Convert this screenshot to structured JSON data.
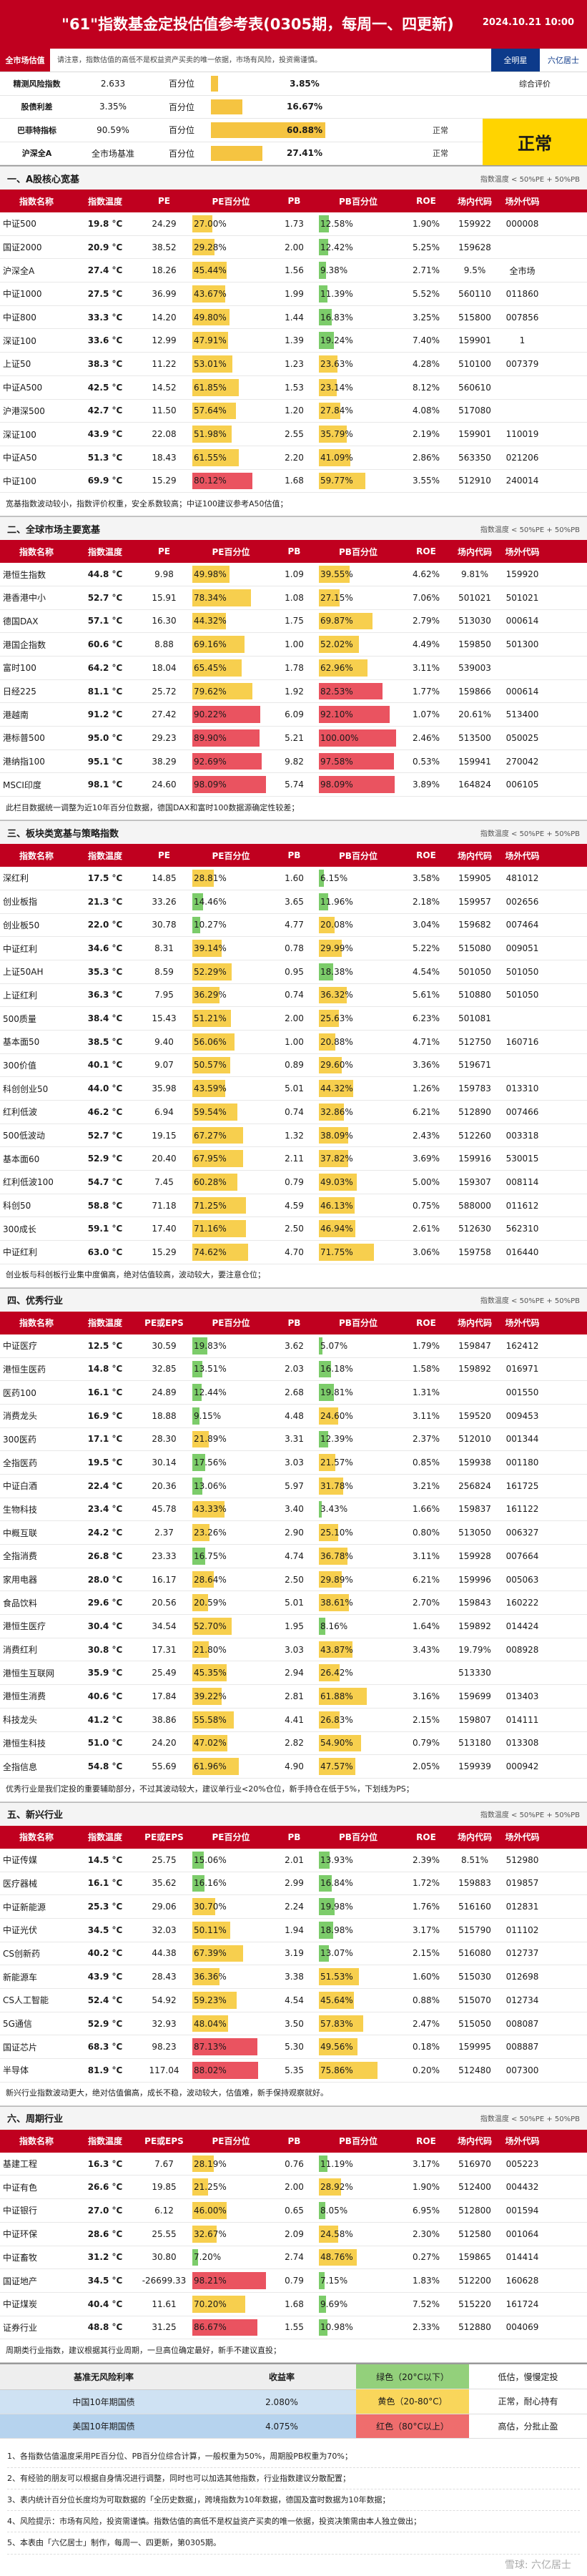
{
  "header": {
    "title": "\"61\"指数基金定投估值参考表(0305期，每周一、四更新)",
    "date": "2024.10.21 10:00"
  },
  "subbar": {
    "tag": "全市场估值",
    "desc": "请注意，指数估值的高低不是权益资产买卖的唯一依据，市场有风险，投资需谨慎。",
    "nav": "全明星",
    "author": "六亿居士"
  },
  "summary": {
    "rows": [
      {
        "name": "精测风险指数",
        "val": "2.633",
        "lbl": "百分位",
        "pct": "3.85%",
        "p": 3.85,
        "side": "综合评价"
      },
      {
        "name": "股债利差",
        "val": "3.35%",
        "lbl": "百分位",
        "pct": "16.67%",
        "p": 16.67,
        "side": ""
      },
      {
        "name": "巴菲特指标",
        "val": "90.59%",
        "lbl": "百分位",
        "pct": "60.88%",
        "p": 60.88,
        "right": "正常"
      },
      {
        "name": "沪深全A",
        "val": "全市场基准",
        "lbl": "百分位",
        "pct": "27.41%",
        "p": 27.41,
        "right": "正常"
      }
    ],
    "verdict": "正常"
  },
  "headers_main": [
    "指数名称",
    "指数温度",
    "PE",
    "PE百分位",
    "PB",
    "PB百分位",
    "ROE",
    "场内代码",
    "场外代码"
  ],
  "headers_ind": [
    "指数名称",
    "指数温度",
    "PE或EPS",
    "PE百分位",
    "PB",
    "PB百分位",
    "ROE",
    "场内代码",
    "场外代码"
  ],
  "sections": [
    {
      "title": "一、A股核心宽基",
      "legend": "指数温度 < 50%PE + 50%PB",
      "headers": "main",
      "note": "宽基指数波动较小，指数评价权重，安全系数较高；中证100建议参考A50估值；",
      "rows": [
        [
          "中证500",
          "19.8 °C",
          "24.29",
          "27.00%",
          "1.73",
          "12.58%",
          "1.90%",
          "159922",
          "000008"
        ],
        [
          "国证2000",
          "20.9 °C",
          "38.52",
          "29.28%",
          "2.00",
          "12.42%",
          "5.25%",
          "159628",
          ""
        ],
        [
          "沪深全A",
          "27.4 °C",
          "18.26",
          "45.44%",
          "1.56",
          "9.38%",
          "2.71%",
          "9.5%",
          "全市场"
        ],
        [
          "中证1000",
          "27.5 °C",
          "36.99",
          "43.67%",
          "1.99",
          "11.39%",
          "5.52%",
          "560110",
          "011860"
        ],
        [
          "中证800",
          "33.3 °C",
          "14.20",
          "49.80%",
          "1.44",
          "16.83%",
          "3.25%",
          "515800",
          "007856"
        ],
        [
          "深证100",
          "33.6 °C",
          "12.99",
          "47.91%",
          "1.39",
          "19.24%",
          "7.40%",
          "159901",
          "1"
        ],
        [
          "上证50",
          "38.3 °C",
          "11.22",
          "53.01%",
          "1.23",
          "23.63%",
          "4.28%",
          "510100",
          "007379"
        ],
        [
          "中证A500",
          "42.5 °C",
          "14.52",
          "61.85%",
          "1.53",
          "23.14%",
          "8.12%",
          "560610",
          ""
        ],
        [
          "沪港深500",
          "42.7 °C",
          "11.50",
          "57.64%",
          "1.20",
          "27.84%",
          "4.08%",
          "517080",
          ""
        ],
        [
          "深证100",
          "43.9 °C",
          "22.08",
          "51.98%",
          "2.55",
          "35.79%",
          "2.19%",
          "159901",
          "110019"
        ],
        [
          "中证A50",
          "51.3 °C",
          "18.43",
          "61.55%",
          "2.20",
          "41.09%",
          "2.86%",
          "563350",
          "021206"
        ],
        [
          "中证100",
          "69.9 °C",
          "15.29",
          "80.12%",
          "1.68",
          "59.77%",
          "3.55%",
          "512910",
          "240014"
        ]
      ]
    },
    {
      "title": "二、全球市场主要宽基",
      "legend": "指数温度 < 50%PE + 50%PB",
      "headers": "main",
      "note": "此栏目数据统一调整为近10年百分位数据，德国DAX和富时100数据源确定性较差；",
      "rows": [
        [
          "港恒生指数",
          "44.8 °C",
          "9.98",
          "49.98%",
          "1.09",
          "39.55%",
          "4.62%",
          "9.81%",
          "159920"
        ],
        [
          "港香港中小",
          "52.7 °C",
          "15.91",
          "78.34%",
          "1.08",
          "27.15%",
          "7.06%",
          "501021",
          "501021"
        ],
        [
          "德国DAX",
          "57.1 °C",
          "16.30",
          "44.32%",
          "1.75",
          "69.87%",
          "2.79%",
          "513030",
          "000614"
        ],
        [
          "港国企指数",
          "60.6 °C",
          "8.88",
          "69.16%",
          "1.00",
          "52.02%",
          "4.49%",
          "159850",
          "501300"
        ],
        [
          "富时100",
          "64.2 °C",
          "18.04",
          "65.45%",
          "1.78",
          "62.96%",
          "3.11%",
          "539003",
          ""
        ],
        [
          "日经225",
          "81.1 °C",
          "25.72",
          "79.62%",
          "1.92",
          "82.53%",
          "1.77%",
          "159866",
          "000614"
        ],
        [
          "港越南",
          "91.2 °C",
          "27.42",
          "90.22%",
          "6.09",
          "92.10%",
          "1.07%",
          "20.61%",
          "513400"
        ],
        [
          "港标普500",
          "95.0 °C",
          "29.23",
          "89.90%",
          "5.21",
          "100.00%",
          "2.46%",
          "513500",
          "050025"
        ],
        [
          "港纳指100",
          "95.1 °C",
          "38.29",
          "92.69%",
          "9.82",
          "97.58%",
          "0.53%",
          "159941",
          "270042"
        ],
        [
          "MSCI印度",
          "98.1 °C",
          "24.60",
          "98.09%",
          "5.74",
          "98.09%",
          "3.89%",
          "164824",
          "006105"
        ]
      ]
    },
    {
      "title": "三、板块类宽基与策略指数",
      "legend": "指数温度 < 50%PE + 50%PB",
      "headers": "main",
      "note": "创业板与科创板行业集中度偏高，绝对估值较高，波动较大，要注意仓位；",
      "rows": [
        [
          "深红利",
          "17.5 °C",
          "14.85",
          "28.81%",
          "1.60",
          "6.15%",
          "3.58%",
          "159905",
          "481012"
        ],
        [
          "创业板指",
          "21.3 °C",
          "33.26",
          "14.46%",
          "3.65",
          "11.96%",
          "2.18%",
          "159957",
          "002656"
        ],
        [
          "创业板50",
          "22.0 °C",
          "30.78",
          "10.27%",
          "4.77",
          "20.08%",
          "3.04%",
          "159682",
          "007464"
        ],
        [
          "中证红利",
          "34.6 °C",
          "8.31",
          "39.14%",
          "0.78",
          "29.99%",
          "5.22%",
          "515080",
          "009051"
        ],
        [
          "上证50AH",
          "35.3 °C",
          "8.59",
          "52.29%",
          "0.95",
          "18.38%",
          "4.54%",
          "501050",
          "501050"
        ],
        [
          "上证红利",
          "36.3 °C",
          "7.95",
          "36.29%",
          "0.74",
          "36.32%",
          "5.61%",
          "510880",
          "501050"
        ],
        [
          "500质量",
          "38.4 °C",
          "15.43",
          "51.21%",
          "2.00",
          "25.63%",
          "6.23%",
          "501081",
          ""
        ],
        [
          "基本面50",
          "38.5 °C",
          "9.40",
          "56.06%",
          "1.00",
          "20.88%",
          "4.71%",
          "512750",
          "160716"
        ],
        [
          "300价值",
          "40.1 °C",
          "9.07",
          "50.57%",
          "0.89",
          "29.60%",
          "3.36%",
          "519671",
          ""
        ],
        [
          "科创创业50",
          "44.0 °C",
          "35.98",
          "43.59%",
          "5.01",
          "44.32%",
          "1.26%",
          "159783",
          "013310"
        ],
        [
          "红利低波",
          "46.2 °C",
          "6.94",
          "59.54%",
          "0.74",
          "32.86%",
          "6.21%",
          "512890",
          "007466"
        ],
        [
          "500低波动",
          "52.7 °C",
          "19.15",
          "67.27%",
          "1.32",
          "38.09%",
          "2.43%",
          "512260",
          "003318"
        ],
        [
          "基本面60",
          "52.9 °C",
          "20.40",
          "67.95%",
          "2.11",
          "37.82%",
          "3.69%",
          "159916",
          "530015"
        ],
        [
          "红利低波100",
          "54.7 °C",
          "7.45",
          "60.28%",
          "0.79",
          "49.03%",
          "5.00%",
          "159307",
          "008114"
        ],
        [
          "科创50",
          "58.8 °C",
          "71.18",
          "71.25%",
          "4.59",
          "46.13%",
          "0.75%",
          "588000",
          "011612"
        ],
        [
          "300成长",
          "59.1 °C",
          "17.40",
          "71.16%",
          "2.50",
          "46.94%",
          "2.61%",
          "512630",
          "562310"
        ],
        [
          "中证红利",
          "63.0 °C",
          "15.29",
          "74.62%",
          "4.70",
          "71.75%",
          "3.06%",
          "159758",
          "016440"
        ]
      ]
    },
    {
      "title": "四、优秀行业",
      "legend": "指数温度 < 50%PE + 50%PB",
      "headers": "ind",
      "note": "优秀行业是我们定投的重要辅助部分，不过其波动较大，建议单行业<20%仓位，新手持仓在低于5%，下划线为PS；",
      "rows": [
        [
          "中证医疗",
          "12.5 °C",
          "30.59",
          "19.83%",
          "3.62",
          "5.07%",
          "1.79%",
          "159847",
          "162412"
        ],
        [
          "港恒生医药",
          "14.8 °C",
          "32.85",
          "13.51%",
          "2.03",
          "16.18%",
          "1.58%",
          "159892",
          "016971"
        ],
        [
          "医药100",
          "16.1 °C",
          "24.89",
          "12.44%",
          "2.68",
          "19.81%",
          "1.31%",
          "",
          "001550"
        ],
        [
          "消费龙头",
          "16.9 °C",
          "18.88",
          "9.15%",
          "4.48",
          "24.60%",
          "3.11%",
          "159520",
          "009453"
        ],
        [
          "300医药",
          "17.1 °C",
          "28.30",
          "21.89%",
          "3.31",
          "12.39%",
          "2.37%",
          "512010",
          "001344"
        ],
        [
          "全指医药",
          "19.5 °C",
          "30.14",
          "17.56%",
          "3.03",
          "21.57%",
          "0.85%",
          "159938",
          "001180"
        ],
        [
          "中证白酒",
          "22.4 °C",
          "20.36",
          "13.06%",
          "5.97",
          "31.78%",
          "3.21%",
          "256824",
          "161725"
        ],
        [
          "生物科技",
          "23.4 °C",
          "45.78",
          "43.33%",
          "3.40",
          "3.43%",
          "1.66%",
          "159837",
          "161122"
        ],
        [
          "中概互联",
          "24.2 °C",
          "2.37",
          "23.26%",
          "2.90",
          "25.10%",
          "0.80%",
          "513050",
          "006327"
        ],
        [
          "全指消费",
          "26.8 °C",
          "23.33",
          "16.75%",
          "4.74",
          "36.78%",
          "3.11%",
          "159928",
          "007664"
        ],
        [
          "家用电器",
          "28.0 °C",
          "16.17",
          "28.64%",
          "2.50",
          "29.89%",
          "6.21%",
          "159996",
          "005063"
        ],
        [
          "食品饮料",
          "29.6 °C",
          "20.56",
          "20.59%",
          "5.01",
          "38.61%",
          "2.70%",
          "159843",
          "160222"
        ],
        [
          "港恒生医疗",
          "30.4 °C",
          "34.54",
          "52.70%",
          "1.95",
          "8.16%",
          "1.64%",
          "159892",
          "014424"
        ],
        [
          "消费红利",
          "30.8 °C",
          "17.31",
          "21.80%",
          "3.03",
          "43.87%",
          "3.43%",
          "19.79%",
          "008928"
        ],
        [
          "港恒生互联网",
          "35.9 °C",
          "25.49",
          "45.35%",
          "2.94",
          "26.42%",
          "",
          "513330",
          ""
        ],
        [
          "港恒生消费",
          "40.6 °C",
          "17.84",
          "39.22%",
          "2.81",
          "61.88%",
          "3.16%",
          "159699",
          "013403"
        ],
        [
          "科技龙头",
          "41.2 °C",
          "38.86",
          "55.58%",
          "4.41",
          "26.83%",
          "2.15%",
          "159807",
          "014111"
        ],
        [
          "港恒生科技",
          "51.0 °C",
          "24.20",
          "47.02%",
          "2.82",
          "54.90%",
          "0.79%",
          "513180",
          "013308"
        ],
        [
          "全指信息",
          "54.8 °C",
          "55.69",
          "61.96%",
          "4.90",
          "47.57%",
          "2.05%",
          "159939",
          "000942"
        ]
      ]
    },
    {
      "title": "五、新兴行业",
      "legend": "指数温度 < 50%PE + 50%PB",
      "headers": "ind",
      "note": "新兴行业指数波动更大，绝对估值偏高，成长不稳，波动较大，估值难，新手保持观察就好。",
      "rows": [
        [
          "中证传媒",
          "14.5 °C",
          "25.75",
          "15.06%",
          "2.01",
          "13.93%",
          "2.39%",
          "8.51%",
          "512980"
        ],
        [
          "医疗器械",
          "16.1 °C",
          "35.62",
          "16.16%",
          "2.99",
          "16.84%",
          "1.72%",
          "159883",
          "019857"
        ],
        [
          "中证新能源",
          "25.3 °C",
          "29.06",
          "30.70%",
          "2.24",
          "19.98%",
          "1.76%",
          "516160",
          "012831"
        ],
        [
          "中证光伏",
          "34.5 °C",
          "32.03",
          "50.11%",
          "1.94",
          "18.98%",
          "3.17%",
          "515790",
          "011102"
        ],
        [
          "CS创新药",
          "40.2 °C",
          "44.38",
          "67.39%",
          "3.19",
          "13.07%",
          "2.15%",
          "516080",
          "012737"
        ],
        [
          "新能源车",
          "43.9 °C",
          "28.43",
          "36.36%",
          "3.38",
          "51.53%",
          "1.60%",
          "515030",
          "012698"
        ],
        [
          "CS人工智能",
          "52.4 °C",
          "54.92",
          "59.23%",
          "4.54",
          "45.64%",
          "0.88%",
          "515070",
          "012734"
        ],
        [
          "5G通信",
          "52.9 °C",
          "32.93",
          "48.04%",
          "3.50",
          "57.83%",
          "2.47%",
          "515050",
          "008087"
        ],
        [
          "国证芯片",
          "68.3 °C",
          "98.23",
          "87.13%",
          "5.30",
          "49.56%",
          "0.18%",
          "159995",
          "008887"
        ],
        [
          "半导体",
          "81.9 °C",
          "117.04",
          "88.02%",
          "5.35",
          "75.86%",
          "0.20%",
          "512480",
          "007300"
        ]
      ]
    },
    {
      "title": "六、周期行业",
      "legend": "指数温度 < 50%PE + 50%PB",
      "headers": "ind",
      "note": "周期类行业指数，建议根据其行业周期，一旦高位确定最好，新手不建议直投；",
      "rows": [
        [
          "基建工程",
          "16.3 °C",
          "7.67",
          "28.19%",
          "0.76",
          "11.19%",
          "3.17%",
          "516970",
          "005223"
        ],
        [
          "中证有色",
          "26.6 °C",
          "19.85",
          "21.25%",
          "2.00",
          "28.92%",
          "1.90%",
          "512400",
          "004432"
        ],
        [
          "中证银行",
          "27.0 °C",
          "6.12",
          "46.00%",
          "0.65",
          "8.05%",
          "6.95%",
          "512800",
          "001594"
        ],
        [
          "中证环保",
          "28.6 °C",
          "25.55",
          "32.67%",
          "2.09",
          "24.58%",
          "2.30%",
          "512580",
          "001064"
        ],
        [
          "中证畜牧",
          "31.2 °C",
          "30.80",
          "7.20%",
          "2.74",
          "48.76%",
          "0.27%",
          "159865",
          "014414"
        ],
        [
          "国证地产",
          "34.5 °C",
          "-26699.33",
          "98.21%",
          "0.79",
          "7.15%",
          "1.83%",
          "512200",
          "160628"
        ],
        [
          "中证煤炭",
          "40.4 °C",
          "11.61",
          "70.20%",
          "1.68",
          "9.69%",
          "7.52%",
          "515220",
          "161724"
        ],
        [
          "证券行业",
          "48.8 °C",
          "31.25",
          "86.67%",
          "1.55",
          "10.98%",
          "2.33%",
          "512880",
          "004069"
        ]
      ]
    }
  ],
  "bottom": {
    "h1": "基准无风险利率",
    "h2": "收益率",
    "rates": [
      [
        "中国10年期国债",
        "2.080%"
      ],
      [
        "美国10年期国债",
        "4.075%"
      ]
    ],
    "temps": [
      [
        "绿色（20°C以下）",
        "低估，慢慢定投"
      ],
      [
        "黄色（20-80°C）",
        "正常，耐心持有"
      ],
      [
        "红色（80°C以上）",
        "高估，分批止盈"
      ]
    ]
  },
  "footer": [
    "1、各指数估值温度采用PE百分位、PB百分位综合计算，一般权重为50%，周期股PB权重为70%；",
    "2、有经验的朋友可以根据自身情况进行调整，同时也可以加选其他指数，行业指数建议分散配置；",
    "3、表内统计百分位长度均为可取数据的「全历史数据」，跨境指数为10年数据，德国及富时数据为10年数据；",
    "4、风险提示：市场有风险，投资需谨慎。指数估值的高低不是权益资产买卖的唯一依据，投资决策需由本人独立做出；",
    "5、本表由「六亿居士」制作，每周一、四更新，第0305期。"
  ],
  "watermark": "雪球: 六亿居士"
}
